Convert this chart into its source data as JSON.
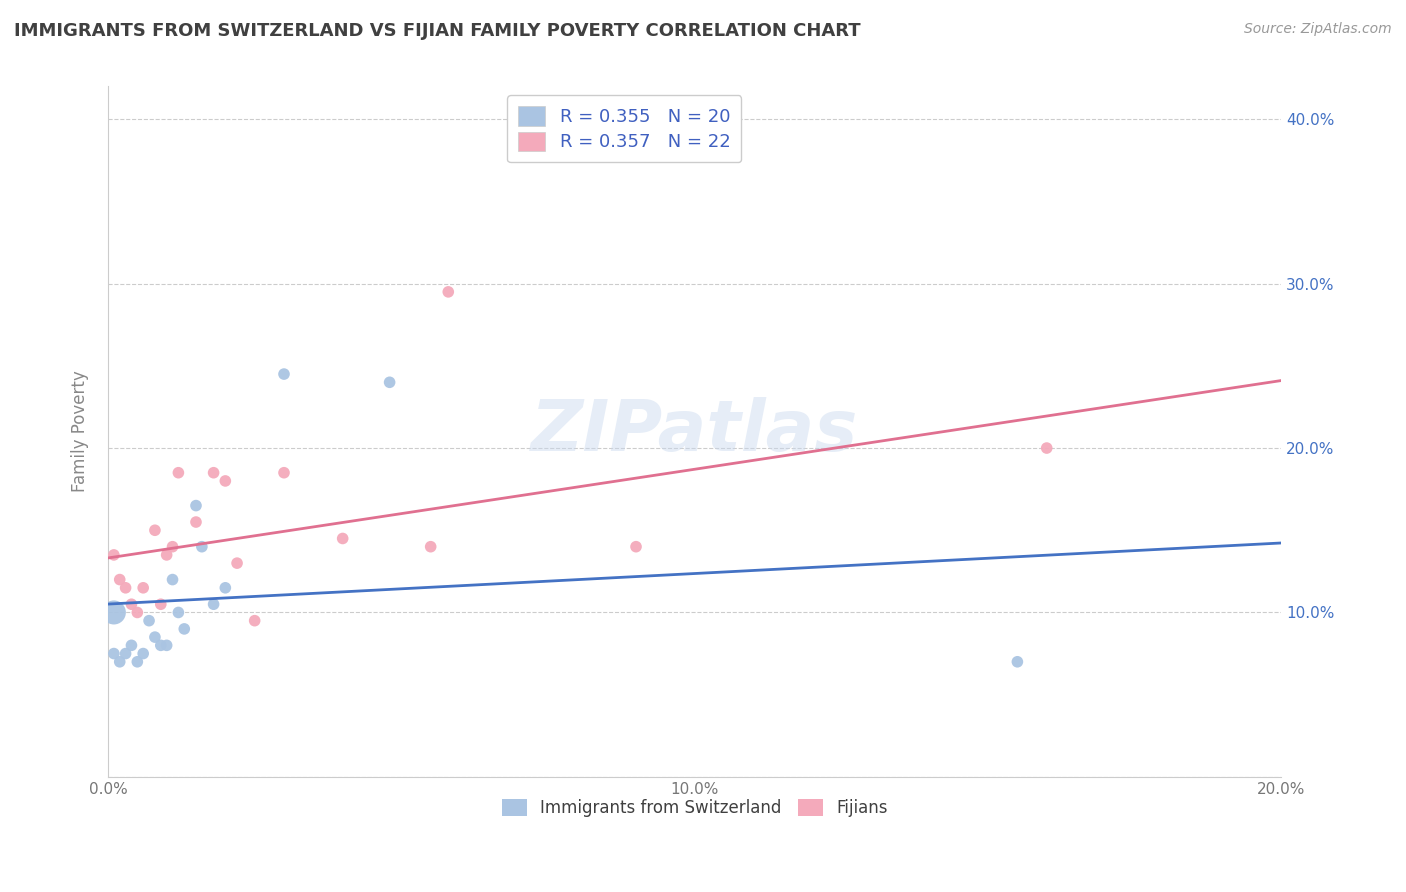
{
  "title": "IMMIGRANTS FROM SWITZERLAND VS FIJIAN FAMILY POVERTY CORRELATION CHART",
  "source": "Source: ZipAtlas.com",
  "ylabel": "Family Poverty",
  "xlim": [
    0.0,
    0.2
  ],
  "ylim": [
    0.0,
    0.42
  ],
  "swiss_R": 0.355,
  "swiss_N": 20,
  "fijian_R": 0.357,
  "fijian_N": 22,
  "swiss_color": "#aac4e2",
  "fijian_color": "#f4aabb",
  "swiss_line_color": "#4472c4",
  "fijian_line_color": "#e07090",
  "swiss_x": [
    0.001,
    0.002,
    0.003,
    0.004,
    0.005,
    0.006,
    0.007,
    0.008,
    0.009,
    0.01,
    0.011,
    0.012,
    0.013,
    0.015,
    0.016,
    0.018,
    0.02,
    0.03,
    0.048,
    0.155
  ],
  "swiss_y": [
    0.075,
    0.07,
    0.075,
    0.08,
    0.07,
    0.075,
    0.095,
    0.085,
    0.08,
    0.08,
    0.12,
    0.1,
    0.09,
    0.165,
    0.14,
    0.105,
    0.115,
    0.245,
    0.24,
    0.07
  ],
  "fijian_x": [
    0.001,
    0.002,
    0.003,
    0.004,
    0.005,
    0.006,
    0.008,
    0.009,
    0.01,
    0.011,
    0.012,
    0.015,
    0.018,
    0.02,
    0.022,
    0.025,
    0.03,
    0.04,
    0.055,
    0.058,
    0.09,
    0.16
  ],
  "fijian_y": [
    0.135,
    0.12,
    0.115,
    0.105,
    0.1,
    0.115,
    0.15,
    0.105,
    0.135,
    0.14,
    0.185,
    0.155,
    0.185,
    0.18,
    0.13,
    0.095,
    0.185,
    0.145,
    0.14,
    0.295,
    0.14,
    0.2
  ],
  "background_color": "#ffffff",
  "grid_color": "#cccccc",
  "title_color": "#404040",
  "axis_label_color": "#888888",
  "legend_swiss_label": "R = 0.355   N = 20",
  "legend_fijian_label": "R = 0.357   N = 22",
  "ytick_positions": [
    0.0,
    0.1,
    0.2,
    0.3,
    0.4
  ],
  "ytick_labels": [
    "",
    "10.0%",
    "20.0%",
    "30.0%",
    "40.0%"
  ],
  "xtick_positions": [
    0.0,
    0.02,
    0.04,
    0.06,
    0.08,
    0.1,
    0.12,
    0.14,
    0.16,
    0.18,
    0.2
  ],
  "xtick_labels": [
    "0.0%",
    "",
    "",
    "",
    "",
    "10.0%",
    "",
    "",
    "",
    "",
    "20.0%"
  ]
}
